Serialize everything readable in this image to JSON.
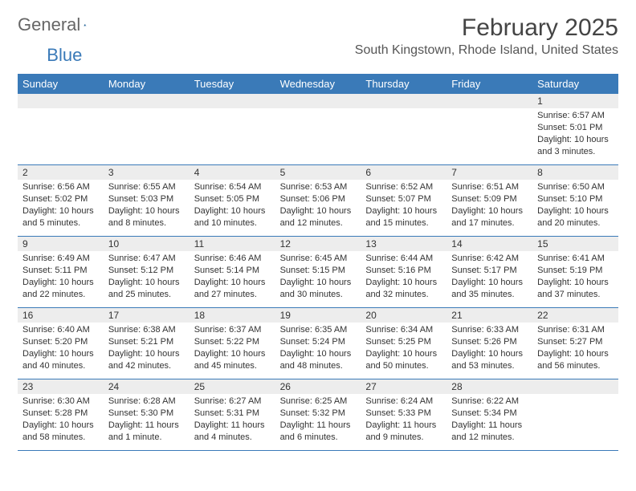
{
  "logo": {
    "text1": "General",
    "text2": "Blue"
  },
  "title": "February 2025",
  "location": "South Kingstown, Rhode Island, United States",
  "colors": {
    "header_bg": "#3a7ab8",
    "header_text": "#ffffff",
    "daynum_bg": "#ededed",
    "week_border": "#3a7ab8",
    "text": "#333333",
    "logo_blue": "#3a7ab8",
    "logo_grey": "#666666"
  },
  "typography": {
    "title_fontsize": 30,
    "location_fontsize": 16,
    "dayheader_fontsize": 13,
    "daynum_fontsize": 12,
    "body_fontsize": 11
  },
  "day_names": [
    "Sunday",
    "Monday",
    "Tuesday",
    "Wednesday",
    "Thursday",
    "Friday",
    "Saturday"
  ],
  "weeks": [
    [
      {
        "day": "",
        "sunrise": "",
        "sunset": "",
        "daylight": ""
      },
      {
        "day": "",
        "sunrise": "",
        "sunset": "",
        "daylight": ""
      },
      {
        "day": "",
        "sunrise": "",
        "sunset": "",
        "daylight": ""
      },
      {
        "day": "",
        "sunrise": "",
        "sunset": "",
        "daylight": ""
      },
      {
        "day": "",
        "sunrise": "",
        "sunset": "",
        "daylight": ""
      },
      {
        "day": "",
        "sunrise": "",
        "sunset": "",
        "daylight": ""
      },
      {
        "day": "1",
        "sunrise": "Sunrise: 6:57 AM",
        "sunset": "Sunset: 5:01 PM",
        "daylight": "Daylight: 10 hours and 3 minutes."
      }
    ],
    [
      {
        "day": "2",
        "sunrise": "Sunrise: 6:56 AM",
        "sunset": "Sunset: 5:02 PM",
        "daylight": "Daylight: 10 hours and 5 minutes."
      },
      {
        "day": "3",
        "sunrise": "Sunrise: 6:55 AM",
        "sunset": "Sunset: 5:03 PM",
        "daylight": "Daylight: 10 hours and 8 minutes."
      },
      {
        "day": "4",
        "sunrise": "Sunrise: 6:54 AM",
        "sunset": "Sunset: 5:05 PM",
        "daylight": "Daylight: 10 hours and 10 minutes."
      },
      {
        "day": "5",
        "sunrise": "Sunrise: 6:53 AM",
        "sunset": "Sunset: 5:06 PM",
        "daylight": "Daylight: 10 hours and 12 minutes."
      },
      {
        "day": "6",
        "sunrise": "Sunrise: 6:52 AM",
        "sunset": "Sunset: 5:07 PM",
        "daylight": "Daylight: 10 hours and 15 minutes."
      },
      {
        "day": "7",
        "sunrise": "Sunrise: 6:51 AM",
        "sunset": "Sunset: 5:09 PM",
        "daylight": "Daylight: 10 hours and 17 minutes."
      },
      {
        "day": "8",
        "sunrise": "Sunrise: 6:50 AM",
        "sunset": "Sunset: 5:10 PM",
        "daylight": "Daylight: 10 hours and 20 minutes."
      }
    ],
    [
      {
        "day": "9",
        "sunrise": "Sunrise: 6:49 AM",
        "sunset": "Sunset: 5:11 PM",
        "daylight": "Daylight: 10 hours and 22 minutes."
      },
      {
        "day": "10",
        "sunrise": "Sunrise: 6:47 AM",
        "sunset": "Sunset: 5:12 PM",
        "daylight": "Daylight: 10 hours and 25 minutes."
      },
      {
        "day": "11",
        "sunrise": "Sunrise: 6:46 AM",
        "sunset": "Sunset: 5:14 PM",
        "daylight": "Daylight: 10 hours and 27 minutes."
      },
      {
        "day": "12",
        "sunrise": "Sunrise: 6:45 AM",
        "sunset": "Sunset: 5:15 PM",
        "daylight": "Daylight: 10 hours and 30 minutes."
      },
      {
        "day": "13",
        "sunrise": "Sunrise: 6:44 AM",
        "sunset": "Sunset: 5:16 PM",
        "daylight": "Daylight: 10 hours and 32 minutes."
      },
      {
        "day": "14",
        "sunrise": "Sunrise: 6:42 AM",
        "sunset": "Sunset: 5:17 PM",
        "daylight": "Daylight: 10 hours and 35 minutes."
      },
      {
        "day": "15",
        "sunrise": "Sunrise: 6:41 AM",
        "sunset": "Sunset: 5:19 PM",
        "daylight": "Daylight: 10 hours and 37 minutes."
      }
    ],
    [
      {
        "day": "16",
        "sunrise": "Sunrise: 6:40 AM",
        "sunset": "Sunset: 5:20 PM",
        "daylight": "Daylight: 10 hours and 40 minutes."
      },
      {
        "day": "17",
        "sunrise": "Sunrise: 6:38 AM",
        "sunset": "Sunset: 5:21 PM",
        "daylight": "Daylight: 10 hours and 42 minutes."
      },
      {
        "day": "18",
        "sunrise": "Sunrise: 6:37 AM",
        "sunset": "Sunset: 5:22 PM",
        "daylight": "Daylight: 10 hours and 45 minutes."
      },
      {
        "day": "19",
        "sunrise": "Sunrise: 6:35 AM",
        "sunset": "Sunset: 5:24 PM",
        "daylight": "Daylight: 10 hours and 48 minutes."
      },
      {
        "day": "20",
        "sunrise": "Sunrise: 6:34 AM",
        "sunset": "Sunset: 5:25 PM",
        "daylight": "Daylight: 10 hours and 50 minutes."
      },
      {
        "day": "21",
        "sunrise": "Sunrise: 6:33 AM",
        "sunset": "Sunset: 5:26 PM",
        "daylight": "Daylight: 10 hours and 53 minutes."
      },
      {
        "day": "22",
        "sunrise": "Sunrise: 6:31 AM",
        "sunset": "Sunset: 5:27 PM",
        "daylight": "Daylight: 10 hours and 56 minutes."
      }
    ],
    [
      {
        "day": "23",
        "sunrise": "Sunrise: 6:30 AM",
        "sunset": "Sunset: 5:28 PM",
        "daylight": "Daylight: 10 hours and 58 minutes."
      },
      {
        "day": "24",
        "sunrise": "Sunrise: 6:28 AM",
        "sunset": "Sunset: 5:30 PM",
        "daylight": "Daylight: 11 hours and 1 minute."
      },
      {
        "day": "25",
        "sunrise": "Sunrise: 6:27 AM",
        "sunset": "Sunset: 5:31 PM",
        "daylight": "Daylight: 11 hours and 4 minutes."
      },
      {
        "day": "26",
        "sunrise": "Sunrise: 6:25 AM",
        "sunset": "Sunset: 5:32 PM",
        "daylight": "Daylight: 11 hours and 6 minutes."
      },
      {
        "day": "27",
        "sunrise": "Sunrise: 6:24 AM",
        "sunset": "Sunset: 5:33 PM",
        "daylight": "Daylight: 11 hours and 9 minutes."
      },
      {
        "day": "28",
        "sunrise": "Sunrise: 6:22 AM",
        "sunset": "Sunset: 5:34 PM",
        "daylight": "Daylight: 11 hours and 12 minutes."
      },
      {
        "day": "",
        "sunrise": "",
        "sunset": "",
        "daylight": ""
      }
    ]
  ]
}
